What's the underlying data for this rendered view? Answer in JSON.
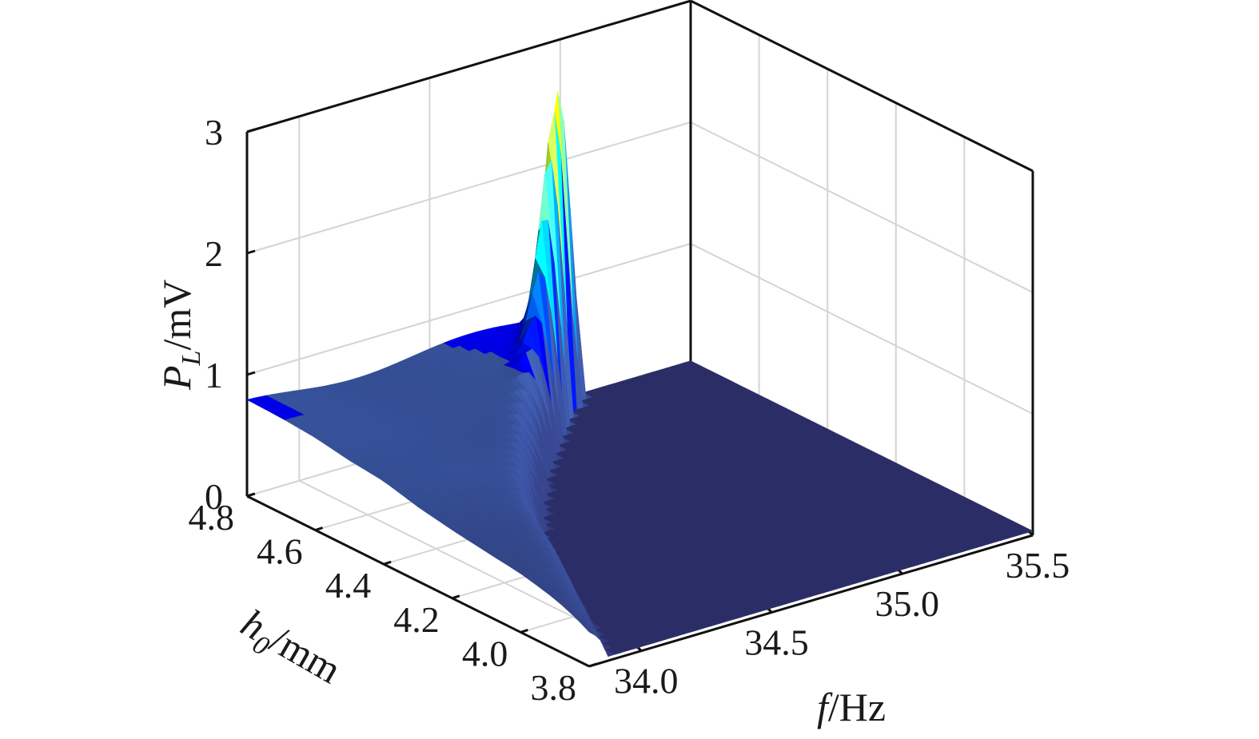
{
  "chart_data": {
    "type": "surface",
    "x_axis": {
      "label_parts": [
        "f",
        "/Hz"
      ],
      "ticks": [
        "34.0",
        "34.5",
        "35.0",
        "35.5"
      ],
      "tick_values": [
        34.0,
        34.5,
        35.0,
        35.5
      ],
      "range": [
        33.8,
        35.5
      ]
    },
    "y_axis": {
      "label_parts": [
        "h",
        "0",
        "/mm"
      ],
      "ticks": [
        "3.8",
        "4.0",
        "4.2",
        "4.4",
        "4.6",
        "4.8"
      ],
      "tick_values": [
        3.8,
        4.0,
        4.2,
        4.4,
        4.6,
        4.8
      ],
      "range": [
        3.8,
        4.8
      ]
    },
    "z_axis": {
      "label_parts": [
        "P",
        "L",
        "/mV"
      ],
      "ticks": [
        "0",
        "1",
        "2",
        "3"
      ],
      "tick_values": [
        0,
        1,
        2,
        3
      ],
      "range": [
        0,
        3
      ]
    },
    "grid": true,
    "colormap": "jet",
    "peak": {
      "f": 35.05,
      "h0": 4.8,
      "value": 2.4
    },
    "ridge_profile": {
      "h0": [
        3.8,
        3.9,
        4.0,
        4.1,
        4.2,
        4.3,
        4.4,
        4.5,
        4.6,
        4.7,
        4.8
      ],
      "f_center": [
        33.85,
        33.92,
        34.0,
        34.08,
        34.15,
        34.25,
        34.38,
        34.52,
        34.68,
        34.86,
        35.05
      ],
      "plateau_value": [
        0.35,
        0.44,
        0.5,
        0.53,
        0.56,
        0.6,
        0.66,
        0.68,
        0.72,
        0.74,
        0.75
      ]
    }
  }
}
